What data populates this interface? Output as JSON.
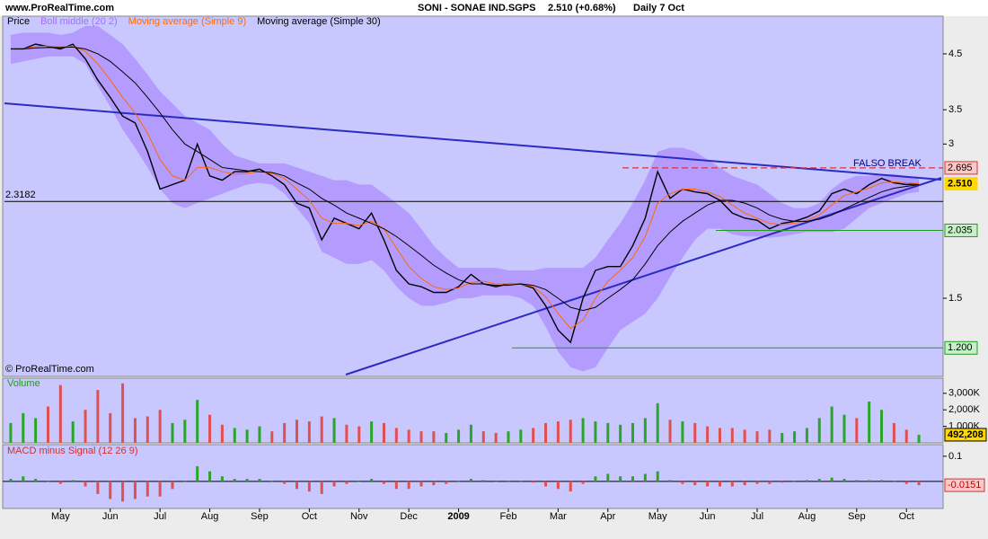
{
  "chart_data": [
    {
      "type": "line",
      "log_scale": true,
      "source": "www.ProRealTime.com",
      "title": "SONI - SONAE IND.SGPS",
      "subtitle": "2.510 (+0.68%)",
      "period": "Daily  7 Oct",
      "watermark": "© ProRealTime.com",
      "annotation": "FALSO BREAK",
      "categories": [
        null,
        null,
        null,
        null,
        "May",
        null,
        null,
        null,
        "Jun",
        null,
        null,
        null,
        "Jul",
        null,
        null,
        null,
        "Aug",
        null,
        null,
        null,
        "Sep",
        null,
        null,
        null,
        "Oct",
        null,
        null,
        null,
        "Nov",
        null,
        null,
        null,
        "Dec",
        null,
        null,
        null,
        "2009",
        null,
        null,
        null,
        "Feb",
        null,
        null,
        null,
        "Mar",
        null,
        null,
        null,
        "Apr",
        null,
        null,
        null,
        "May",
        null,
        null,
        null,
        "Jun",
        null,
        null,
        null,
        "Jul",
        null,
        null,
        null,
        "Aug",
        null,
        null,
        null,
        "Sep",
        null,
        null,
        null,
        "Oct",
        null
      ],
      "ylim": [
        1.06,
        5.33
      ],
      "yticks": [
        1.5,
        3,
        3.5,
        4.5
      ],
      "series": [
        {
          "name": "Price",
          "color": "#000000",
          "values": [
            4.6,
            4.6,
            4.7,
            4.65,
            4.6,
            4.7,
            4.4,
            4.0,
            3.7,
            3.4,
            3.3,
            2.9,
            2.45,
            2.5,
            2.55,
            3.0,
            2.6,
            2.55,
            2.65,
            2.65,
            2.68,
            2.6,
            2.5,
            2.3,
            2.25,
            1.95,
            2.15,
            2.1,
            2.05,
            2.2,
            1.95,
            1.7,
            1.6,
            1.58,
            1.54,
            1.54,
            1.58,
            1.67,
            1.6,
            1.58,
            1.6,
            1.6,
            1.57,
            1.45,
            1.3,
            1.23,
            1.5,
            1.7,
            1.73,
            1.73,
            1.9,
            2.15,
            2.65,
            2.35,
            2.45,
            2.42,
            2.4,
            2.33,
            2.2,
            2.15,
            2.13,
            2.05,
            2.1,
            2.12,
            2.16,
            2.22,
            2.4,
            2.45,
            2.4,
            2.5,
            2.57,
            2.52,
            2.5,
            2.51
          ]
        },
        {
          "name": "Boll middle (20 2)",
          "color": "#a070ff",
          "upper": [
            4.9,
            4.95,
            4.95,
            4.95,
            4.9,
            4.95,
            5.1,
            5.1,
            4.9,
            4.7,
            4.4,
            4.1,
            3.8,
            3.6,
            3.4,
            3.3,
            3.2,
            3.0,
            2.85,
            2.8,
            2.75,
            2.75,
            2.75,
            2.7,
            2.65,
            2.6,
            2.55,
            2.55,
            2.5,
            2.5,
            2.4,
            2.3,
            2.2,
            2.05,
            1.9,
            1.8,
            1.72,
            1.72,
            1.72,
            1.72,
            1.7,
            1.7,
            1.7,
            1.72,
            1.72,
            1.72,
            1.72,
            1.8,
            1.95,
            2.1,
            2.3,
            2.55,
            2.9,
            2.95,
            2.95,
            2.9,
            2.8,
            2.7,
            2.6,
            2.55,
            2.5,
            2.4,
            2.3,
            2.25,
            2.25,
            2.3,
            2.45,
            2.55,
            2.6,
            2.6,
            2.62,
            2.62,
            2.6,
            2.58
          ],
          "lower": [
            4.3,
            4.35,
            4.4,
            4.45,
            4.45,
            4.45,
            4.3,
            3.9,
            3.55,
            3.2,
            2.95,
            2.7,
            2.45,
            2.3,
            2.25,
            2.3,
            2.35,
            2.4,
            2.45,
            2.5,
            2.52,
            2.5,
            2.4,
            2.25,
            2.1,
            1.85,
            1.8,
            1.75,
            1.75,
            1.78,
            1.7,
            1.58,
            1.5,
            1.45,
            1.45,
            1.47,
            1.5,
            1.5,
            1.52,
            1.52,
            1.52,
            1.5,
            1.45,
            1.32,
            1.18,
            1.1,
            1.08,
            1.1,
            1.2,
            1.3,
            1.35,
            1.4,
            1.5,
            1.65,
            1.8,
            1.95,
            2.05,
            2.05,
            2.0,
            1.98,
            1.98,
            1.97,
            1.98,
            2.0,
            2.02,
            2.02,
            2.02,
            2.05,
            2.15,
            2.25,
            2.3,
            2.35,
            2.4,
            2.42
          ]
        },
        {
          "name": "Moving average (Simple 9)",
          "color": "#ff6a00",
          "values": [
            4.6,
            4.6,
            4.65,
            4.66,
            4.64,
            4.66,
            4.55,
            4.3,
            4.0,
            3.7,
            3.45,
            3.15,
            2.8,
            2.6,
            2.55,
            2.7,
            2.7,
            2.65,
            2.62,
            2.63,
            2.65,
            2.63,
            2.57,
            2.45,
            2.33,
            2.15,
            2.1,
            2.1,
            2.08,
            2.12,
            2.05,
            1.88,
            1.73,
            1.64,
            1.58,
            1.56,
            1.57,
            1.61,
            1.62,
            1.6,
            1.6,
            1.6,
            1.58,
            1.51,
            1.4,
            1.31,
            1.36,
            1.5,
            1.62,
            1.7,
            1.8,
            1.98,
            2.3,
            2.4,
            2.45,
            2.45,
            2.42,
            2.37,
            2.28,
            2.2,
            2.15,
            2.1,
            2.09,
            2.1,
            2.13,
            2.18,
            2.28,
            2.38,
            2.42,
            2.46,
            2.52,
            2.53,
            2.52,
            2.51
          ]
        },
        {
          "name": "Moving average (Simple 30)",
          "color": "#000000",
          "values": [
            4.6,
            4.6,
            4.62,
            4.63,
            4.63,
            4.64,
            4.6,
            4.5,
            4.35,
            4.15,
            3.95,
            3.7,
            3.45,
            3.2,
            3.0,
            2.9,
            2.8,
            2.7,
            2.68,
            2.66,
            2.65,
            2.64,
            2.6,
            2.52,
            2.45,
            2.35,
            2.28,
            2.2,
            2.15,
            2.1,
            2.05,
            1.98,
            1.9,
            1.82,
            1.74,
            1.68,
            1.63,
            1.6,
            1.6,
            1.59,
            1.59,
            1.6,
            1.59,
            1.56,
            1.5,
            1.44,
            1.42,
            1.44,
            1.5,
            1.56,
            1.63,
            1.75,
            1.9,
            2.02,
            2.12,
            2.2,
            2.28,
            2.33,
            2.33,
            2.3,
            2.25,
            2.18,
            2.14,
            2.12,
            2.12,
            2.14,
            2.18,
            2.24,
            2.3,
            2.36,
            2.42,
            2.46,
            2.48,
            2.5
          ]
        }
      ],
      "levels": [
        {
          "value": 2.695,
          "color": "#e03030"
        },
        {
          "value": 2.51,
          "label": "2.510",
          "color": "#ffd800"
        },
        {
          "value": 2.035,
          "color": "#1f9a1f"
        },
        {
          "value": 1.2,
          "label": "1.200",
          "color": "#1f9a1f"
        },
        {
          "value": 2.3182,
          "color": "#000000"
        }
      ]
    },
    {
      "type": "bar",
      "title": "Volume",
      "color": "#1f9a1f",
      "up_color": "#2aa52a",
      "down_color": "#e05050",
      "ylim": [
        0,
        3860000
      ],
      "yticks": [
        {
          "value": 1000000,
          "label": "1,000K"
        },
        {
          "value": 2000000,
          "label": "2,000K"
        },
        {
          "value": 3000000,
          "label": "3,000K"
        }
      ],
      "values": [
        1200000,
        1800000,
        1500000,
        2200000,
        3500000,
        1300000,
        2000000,
        3200000,
        1800000,
        3600000,
        1500000,
        1600000,
        2000000,
        1200000,
        1400000,
        2600000,
        1700000,
        1100000,
        900000,
        800000,
        1000000,
        700000,
        1200000,
        1400000,
        1300000,
        1600000,
        1500000,
        1100000,
        1000000,
        1300000,
        1200000,
        900000,
        800000,
        700000,
        700000,
        600000,
        800000,
        1100000,
        700000,
        600000,
        700000,
        800000,
        900000,
        1200000,
        1300000,
        1400000,
        1500000,
        1300000,
        1200000,
        1100000,
        1200000,
        1500000,
        2400000,
        1400000,
        1300000,
        1200000,
        1000000,
        900000,
        900000,
        800000,
        700000,
        800000,
        600000,
        700000,
        900000,
        1500000,
        2200000,
        1700000,
        1500000,
        2500000,
        2000000,
        1200000,
        800000,
        492208
      ],
      "current_label": "492,208"
    },
    {
      "type": "bar",
      "title": "MACD minus Signal (12 26 9)",
      "color": "#d03030",
      "up_color": "#2aa52a",
      "down_color": "#e05050",
      "ylim": [
        -0.104,
        0.146
      ],
      "yticks": [
        0.1
      ],
      "values": [
        0.01,
        0.02,
        0.01,
        0,
        -0.01,
        0.005,
        -0.02,
        -0.05,
        -0.07,
        -0.08,
        -0.07,
        -0.06,
        -0.06,
        -0.03,
        0,
        0.06,
        0.04,
        0.02,
        0.01,
        0.01,
        0.01,
        0,
        -0.01,
        -0.03,
        -0.04,
        -0.05,
        -0.02,
        -0.01,
        0,
        0.01,
        -0.01,
        -0.03,
        -0.03,
        -0.02,
        -0.015,
        -0.01,
        0,
        0.01,
        0.005,
        0,
        0,
        0,
        -0.005,
        -0.02,
        -0.03,
        -0.04,
        -0.01,
        0.02,
        0.03,
        0.02,
        0.02,
        0.03,
        0.04,
        0.005,
        -0.01,
        -0.015,
        -0.02,
        -0.02,
        -0.02,
        -0.015,
        -0.01,
        -0.01,
        -0.005,
        0,
        0.005,
        0.01,
        0.015,
        0.01,
        0.005,
        0.005,
        0.005,
        0,
        -0.01,
        -0.0151
      ]
    }
  ]
}
